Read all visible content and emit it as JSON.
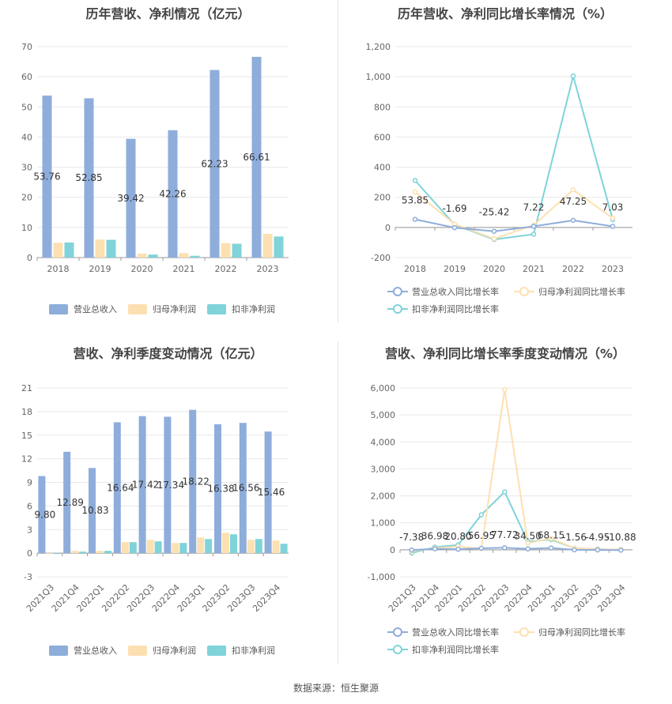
{
  "colors": {
    "revenue": "#8EADDB",
    "net_profit": "#FDE0B1",
    "deducted_profit": "#7FD3D9",
    "axis": "#999999",
    "grid": "#e8e8e8",
    "label": "#333333"
  },
  "source_text": "数据来源：恒生聚源",
  "chart_data": [
    {
      "type": "bar",
      "title": "历年营收、净利情况（亿元）",
      "categories": [
        "2018",
        "2019",
        "2020",
        "2021",
        "2022",
        "2023"
      ],
      "ylim": [
        0,
        70
      ],
      "yticks": [
        0,
        10,
        20,
        30,
        40,
        50,
        60,
        70
      ],
      "ytick_labels": [
        "0",
        "10",
        "20",
        "30",
        "40",
        "50",
        "60",
        "70"
      ],
      "series": [
        {
          "name": "营业总收入",
          "values": [
            53.76,
            52.85,
            39.42,
            42.26,
            62.23,
            66.61
          ]
        },
        {
          "name": "归母净利润",
          "values": [
            4.9,
            6.0,
            1.3,
            1.5,
            4.8,
            7.9
          ]
        },
        {
          "name": "扣非净利润",
          "values": [
            5.0,
            5.9,
            1.0,
            0.6,
            4.6,
            7.0
          ]
        }
      ],
      "data_labels": [
        "53.76",
        "52.85",
        "39.42",
        "42.26",
        "62.23",
        "66.61"
      ],
      "grid": true,
      "legend": "bottom"
    },
    {
      "type": "line",
      "title": "历年营收、净利同比增长率情况（%）",
      "categories": [
        "2018",
        "2019",
        "2020",
        "2021",
        "2022",
        "2023"
      ],
      "ylim": [
        -200,
        1200
      ],
      "yticks": [
        -200,
        0,
        200,
        400,
        600,
        800,
        1000,
        1200
      ],
      "ytick_labels": [
        "-200",
        "0",
        "200",
        "400",
        "600",
        "800",
        "1,000",
        "1,200"
      ],
      "series": [
        {
          "name": "营业总收入同比增长率",
          "values": [
            53.85,
            -1.69,
            -25.42,
            7.22,
            47.25,
            7.03
          ]
        },
        {
          "name": "归母净利润同比增长率",
          "values": [
            235,
            22,
            -75,
            15,
            250,
            62
          ]
        },
        {
          "name": "扣非净利润同比增长率",
          "values": [
            312,
            18,
            -80,
            -45,
            1005,
            52
          ]
        }
      ],
      "data_labels": [
        "53.85",
        "-1.69",
        "-25.42",
        "7.22",
        "47.25",
        "7.03"
      ],
      "grid": true,
      "legend": "bottom"
    },
    {
      "type": "bar",
      "title": "营收、净利季度变动情况（亿元）",
      "categories": [
        "2021Q3",
        "2021Q4",
        "2022Q1",
        "2022Q2",
        "2022Q3",
        "2022Q4",
        "2023Q1",
        "2023Q2",
        "2023Q3",
        "2023Q4"
      ],
      "ylim": [
        -3,
        21
      ],
      "yticks": [
        -3,
        0,
        3,
        6,
        9,
        12,
        15,
        18,
        21
      ],
      "ytick_labels": [
        "-3",
        "0",
        "3",
        "6",
        "9",
        "12",
        "15",
        "18",
        "21"
      ],
      "series": [
        {
          "name": "营业总收入",
          "values": [
            9.8,
            12.89,
            10.83,
            16.64,
            17.42,
            17.34,
            18.22,
            16.38,
            16.56,
            15.46
          ]
        },
        {
          "name": "归母净利润",
          "values": [
            -0.1,
            0.3,
            0.3,
            1.4,
            1.7,
            1.3,
            2.0,
            2.6,
            1.7,
            1.6
          ]
        },
        {
          "name": "扣非净利润",
          "values": [
            -0.1,
            0.2,
            0.3,
            1.4,
            1.5,
            1.3,
            1.8,
            2.4,
            1.8,
            1.2
          ]
        }
      ],
      "data_labels": [
        "9.80",
        "12.89",
        "10.83",
        "16.64",
        "17.42",
        "17.34",
        "18.22",
        "16.38",
        "16.56",
        "15.46"
      ],
      "grid": true,
      "legend": "bottom"
    },
    {
      "type": "line",
      "title": "营收、净利同比增长率季度变动情况（%）",
      "categories": [
        "2021Q3",
        "2021Q4",
        "2022Q1",
        "2022Q2",
        "2022Q3",
        "2022Q4",
        "2023Q1",
        "2023Q2",
        "2023Q3",
        "2023Q4"
      ],
      "ylim": [
        -1000,
        6000
      ],
      "yticks": [
        -1000,
        0,
        1000,
        2000,
        3000,
        4000,
        5000,
        6000
      ],
      "ytick_labels": [
        "-1,000",
        "0",
        "1,000",
        "2,000",
        "3,000",
        "4,000",
        "5,000",
        "6,000"
      ],
      "series": [
        {
          "name": "营业总收入同比增长率",
          "values": [
            -7.38,
            36.98,
            20.8,
            56.95,
            77.72,
            34.5,
            68.15,
            -1.56,
            -4.95,
            -10.88
          ]
        },
        {
          "name": "归母净利润同比增长率",
          "values": [
            -50,
            60,
            120,
            40,
            5940,
            250,
            420,
            60,
            20,
            10
          ]
        },
        {
          "name": "扣非净利润同比增长率",
          "values": [
            -120,
            100,
            180,
            1300,
            2150,
            300,
            380,
            60,
            30,
            -10
          ]
        }
      ],
      "data_labels": [
        "-7.38",
        "36.98",
        "20.80",
        "56.95",
        "77.72",
        "34.50",
        "68.15",
        "-1.56",
        "-4.95",
        "-10.88"
      ],
      "grid": true,
      "legend": "bottom"
    }
  ]
}
